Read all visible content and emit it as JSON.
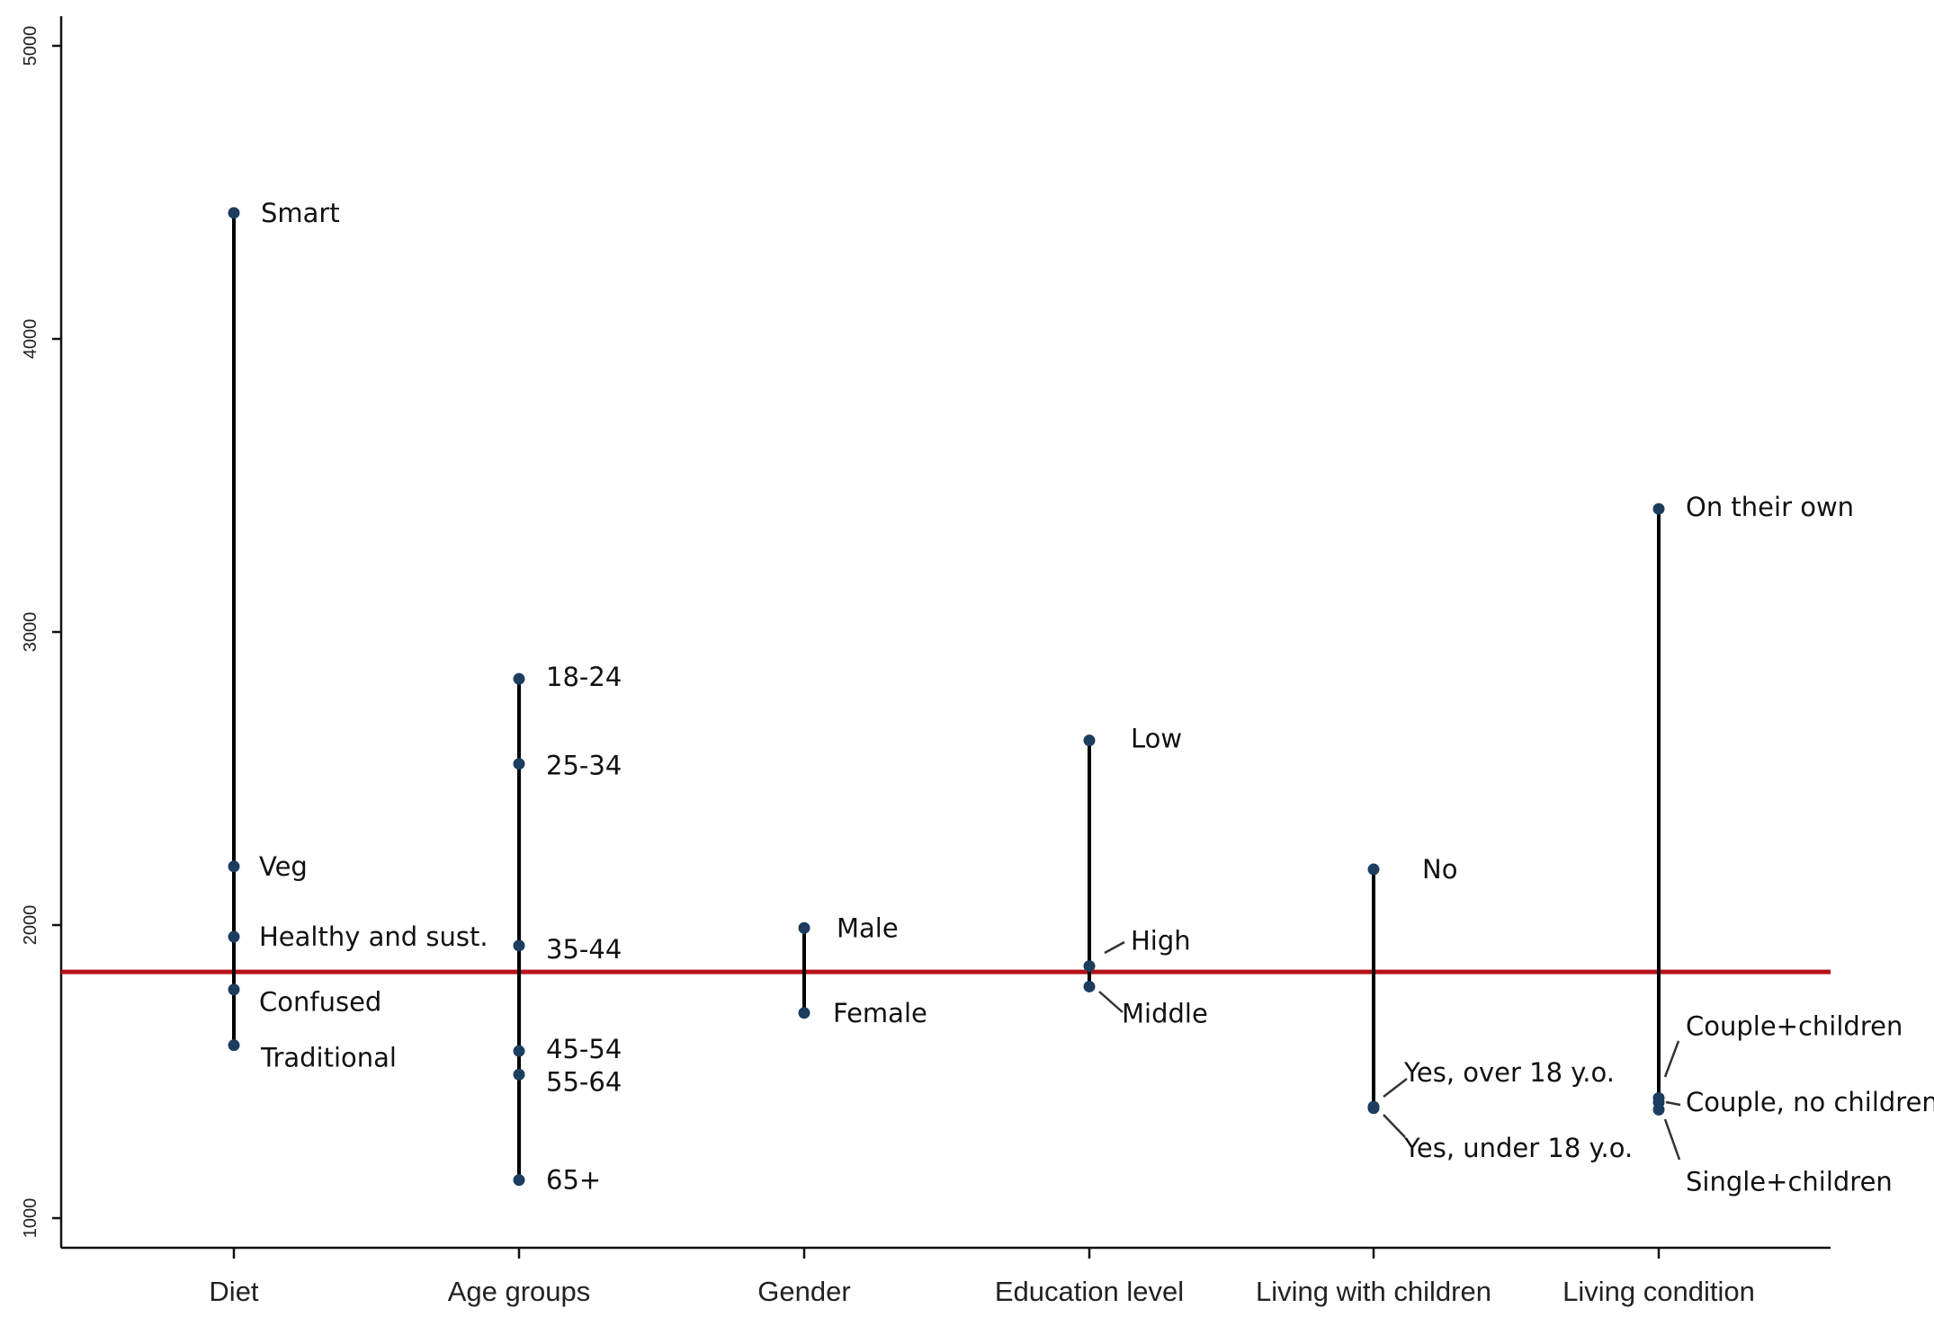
{
  "chart_data": {
    "type": "dot-range",
    "title": "",
    "xlabel": "",
    "ylabel": "",
    "ylim": [
      950,
      5100
    ],
    "yticks": [
      1000,
      2000,
      3000,
      4000,
      5000
    ],
    "reference_line": 1840,
    "reference_color": "#b5121b",
    "point_color": "#1c3d5e",
    "groups": [
      {
        "name": "Diet",
        "points": [
          {
            "label": "Smart",
            "value": 4430
          },
          {
            "label": "Veg",
            "value": 2200
          },
          {
            "label": "Healthy and sust.",
            "value": 1960
          },
          {
            "label": "Confused",
            "value": 1780
          },
          {
            "label": "Traditional",
            "value": 1590
          }
        ]
      },
      {
        "name": "Age groups",
        "points": [
          {
            "label": "18-24",
            "value": 2840
          },
          {
            "label": "25-34",
            "value": 2550
          },
          {
            "label": "35-44",
            "value": 1930
          },
          {
            "label": "45-54",
            "value": 1570
          },
          {
            "label": "55-64",
            "value": 1490
          },
          {
            "label": "65+",
            "value": 1130
          }
        ]
      },
      {
        "name": "Gender",
        "points": [
          {
            "label": "Male",
            "value": 1990
          },
          {
            "label": "Female",
            "value": 1700
          }
        ]
      },
      {
        "name": "Education level",
        "points": [
          {
            "label": "Low",
            "value": 2630
          },
          {
            "label": "High",
            "value": 1860
          },
          {
            "label": "Middle",
            "value": 1790
          }
        ]
      },
      {
        "name": "Living with children",
        "points": [
          {
            "label": "No",
            "value": 2190
          },
          {
            "label": "Yes, over 18 y.o.",
            "value": 1380
          },
          {
            "label": "Yes, under 18 y.o.",
            "value": 1375
          }
        ]
      },
      {
        "name": "Living condition",
        "points": [
          {
            "label": "On their own",
            "value": 3420
          },
          {
            "label": "Couple+children",
            "value": 1410
          },
          {
            "label": "Couple, no children",
            "value": 1395
          },
          {
            "label": "Single+children",
            "value": 1370
          }
        ]
      }
    ]
  }
}
